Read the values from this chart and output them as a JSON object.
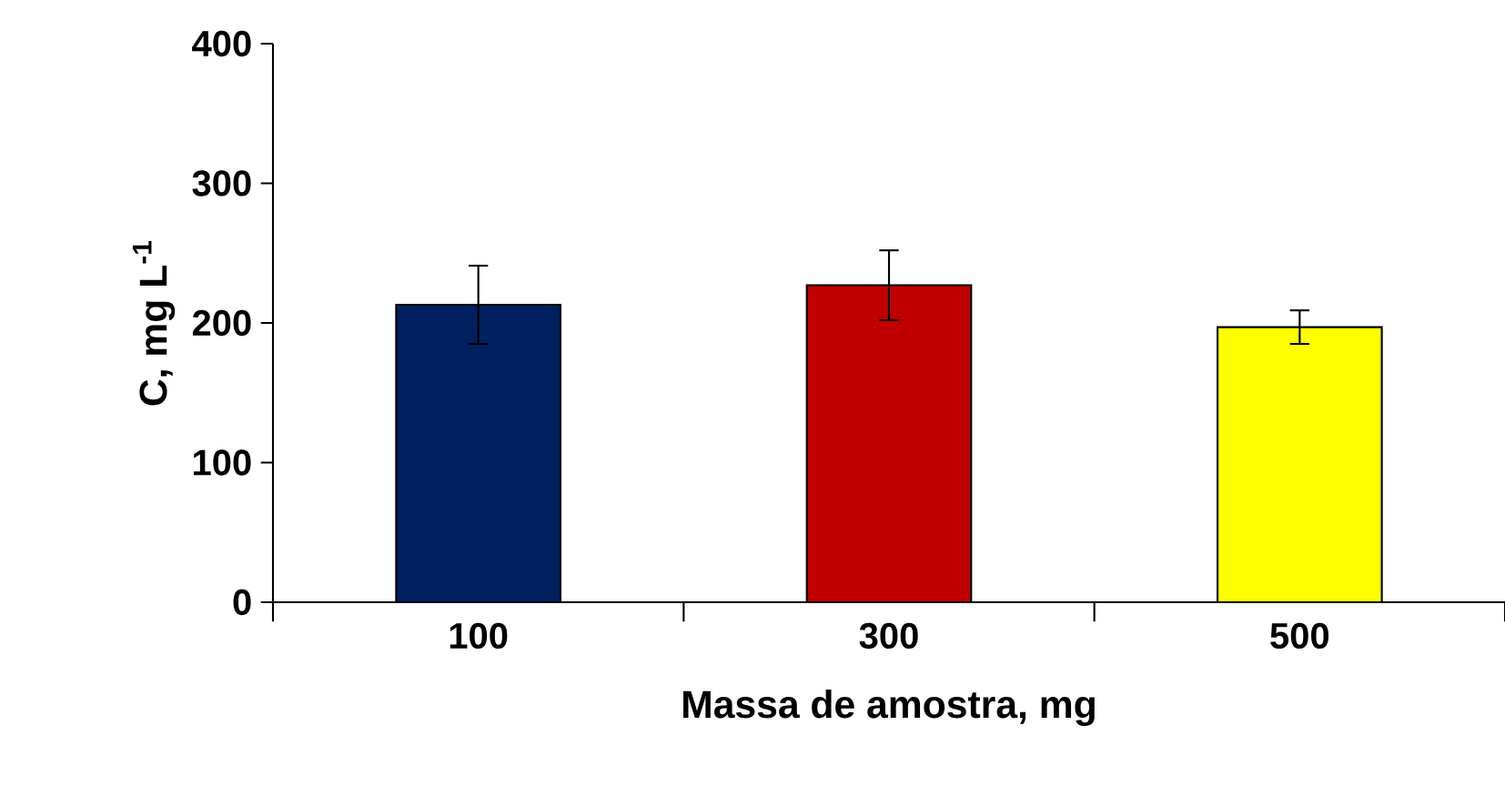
{
  "chart_data": {
    "type": "bar",
    "xlabel": "Massa de amostra, mg",
    "ylabel": "C, mg L$^{-1}$",
    "categories": [
      "100",
      "300",
      "500"
    ],
    "values": [
      213,
      227,
      197
    ],
    "errors": [
      28,
      25,
      12
    ],
    "colors": [
      "#002060",
      "#c00000",
      "#ffff00"
    ],
    "ylim": [
      0,
      400
    ],
    "yticks": [
      0,
      100,
      200,
      300,
      400
    ]
  }
}
